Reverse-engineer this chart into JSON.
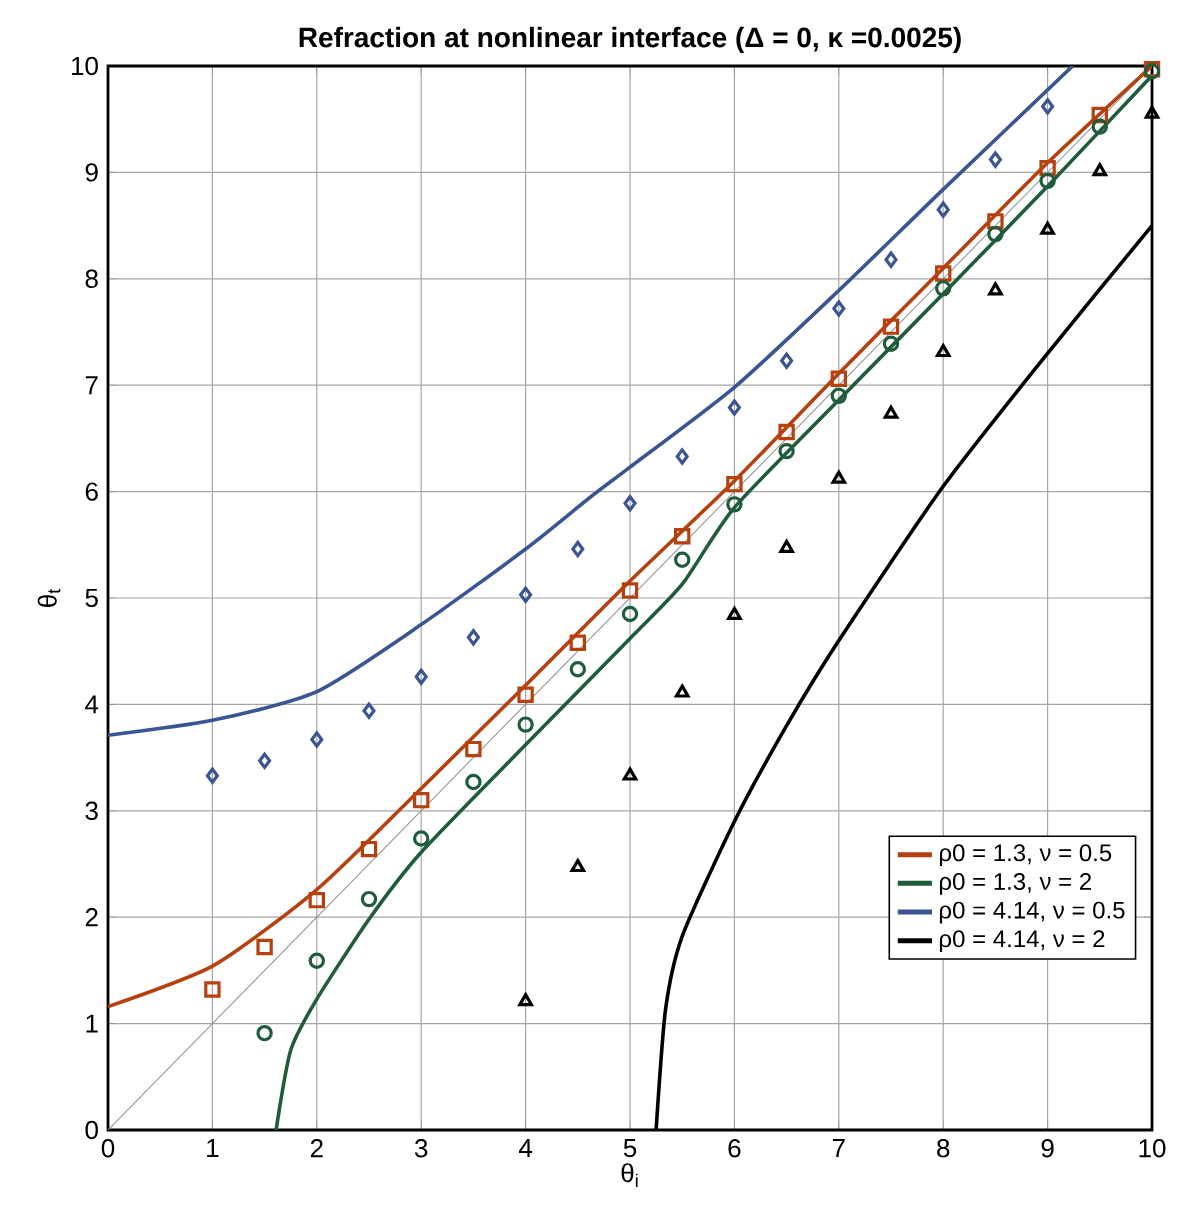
{
  "chart_data": {
    "type": "line",
    "title": "Refraction at nonlinear interface (Δ = 0, κ =0.0025)",
    "xlabel": "θ$_{i}$",
    "ylabel": "θ$_{t}$",
    "xlim": [
      0,
      10
    ],
    "ylim": [
      0,
      10
    ],
    "xticks": [
      0,
      1,
      2,
      3,
      4,
      5,
      6,
      7,
      8,
      9,
      10
    ],
    "yticks": [
      0,
      1,
      2,
      3,
      4,
      5,
      6,
      7,
      8,
      9,
      10
    ],
    "grid": true,
    "legend": "bottom right",
    "series": [
      {
        "type": "line",
        "color": "#909090",
        "x": [
          0,
          10
        ],
        "values": [
          0,
          10
        ]
      },
      {
        "type": "line",
        "name": "ρ0 = 1.3, ν = 0.5",
        "color": "#b5410f",
        "x": [
          0,
          1,
          2,
          3,
          4,
          5,
          6,
          7,
          8,
          9,
          10
        ],
        "values": [
          1.16,
          1.54,
          2.26,
          3.21,
          4.18,
          5.16,
          6.1,
          7.11,
          8.1,
          9.09,
          10
        ]
      },
      {
        "type": "line",
        "name": "ρ0 = 1.3, ν = 2",
        "color": "#1f5c3b",
        "x": [
          1.61,
          1.75,
          2,
          2.5,
          3,
          4,
          5,
          5.5,
          6,
          7,
          8,
          9,
          10
        ],
        "values": [
          0,
          0.75,
          1.23,
          1.98,
          2.61,
          3.62,
          4.62,
          5.13,
          5.85,
          6.86,
          7.86,
          8.87,
          9.91
        ]
      },
      {
        "type": "line",
        "name": "ρ0 = 4.14, ν = 0.5",
        "color": "#3a5591",
        "x": [
          0,
          1,
          2,
          3,
          4,
          4.61,
          5,
          6,
          7,
          8,
          9.24
        ],
        "values": [
          3.71,
          3.85,
          4.12,
          4.75,
          5.46,
          5.94,
          6.23,
          6.98,
          7.89,
          8.84,
          10
        ]
      },
      {
        "type": "line",
        "name": "ρ0 = 4.14, ν = 2",
        "color": "#000000",
        "x": [
          5.25,
          5.34,
          5.5,
          6,
          6.5,
          7,
          8,
          9,
          10
        ],
        "values": [
          0,
          1.13,
          1.82,
          2.9,
          3.8,
          4.6,
          6.05,
          7.3,
          8.5
        ]
      },
      {
        "type": "scatter",
        "marker": "square",
        "color": "#b5410f",
        "x": [
          1,
          1.5,
          2,
          2.5,
          3,
          3.5,
          4,
          4.5,
          5,
          5.5,
          6,
          6.5,
          7,
          7.5,
          8,
          8.5,
          9,
          9.5,
          10
        ],
        "values": [
          1.32,
          1.72,
          2.16,
          2.64,
          3.1,
          3.58,
          4.09,
          4.58,
          5.07,
          5.58,
          6.07,
          6.56,
          7.06,
          7.55,
          8.05,
          8.54,
          9.04,
          9.54,
          9.97
        ]
      },
      {
        "type": "scatter",
        "marker": "circle",
        "color": "#1f5c3b",
        "x": [
          1.5,
          2,
          2.5,
          3,
          3.5,
          4,
          4.5,
          5,
          5.5,
          6,
          6.5,
          7,
          7.5,
          8,
          8.5,
          9,
          9.5,
          10
        ],
        "values": [
          0.91,
          1.59,
          2.17,
          2.74,
          3.27,
          3.81,
          4.33,
          4.85,
          5.36,
          5.88,
          6.38,
          6.9,
          7.39,
          7.91,
          8.42,
          8.92,
          9.43,
          9.95
        ]
      },
      {
        "type": "scatter",
        "marker": "diamond",
        "color": "#3a5591",
        "x": [
          1,
          1.5,
          2,
          2.5,
          3,
          3.5,
          4,
          4.5,
          5,
          5.5,
          6,
          6.5,
          7,
          7.5,
          8,
          8.5,
          9
        ],
        "values": [
          3.33,
          3.47,
          3.67,
          3.94,
          4.26,
          4.63,
          5.03,
          5.46,
          5.89,
          6.33,
          6.79,
          7.23,
          7.72,
          8.18,
          8.65,
          9.12,
          9.62
        ]
      },
      {
        "type": "scatter",
        "marker": "triangle",
        "color": "#000000",
        "x": [
          4,
          4.5,
          5,
          5.5,
          6,
          6.5,
          7,
          7.5,
          8,
          8.5,
          9,
          9.5,
          10
        ],
        "values": [
          1.21,
          2.47,
          3.33,
          4.11,
          4.84,
          5.47,
          6.12,
          6.73,
          7.31,
          7.89,
          8.46,
          9.01,
          9.55
        ]
      }
    ]
  }
}
